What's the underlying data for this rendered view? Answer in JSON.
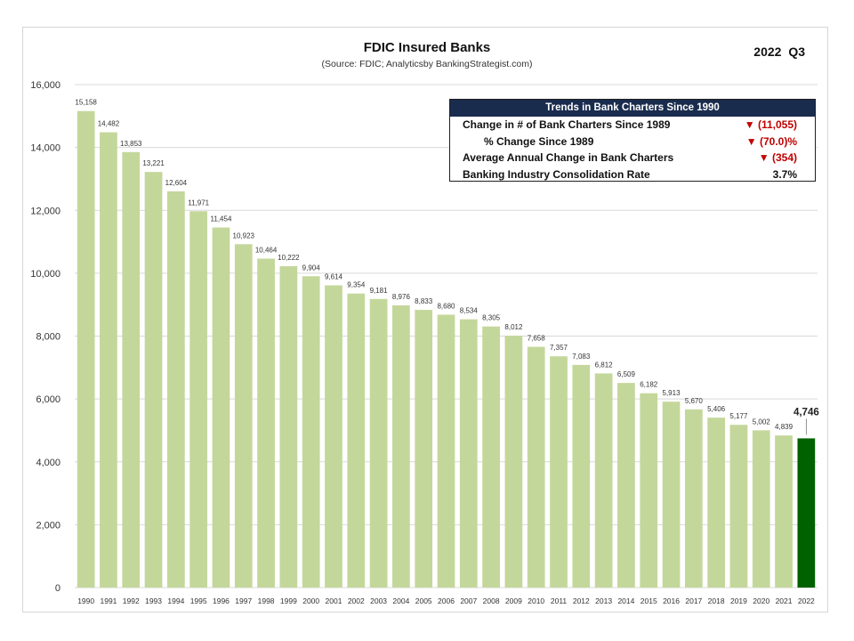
{
  "header": {
    "title": "FDIC Insured Banks",
    "subtitle": "(Source: FDIC; Analyticsby BankingStrategist.com)",
    "period": "2022  Q3"
  },
  "info_box": {
    "title": "Trends in Bank Charters Since 1990",
    "rows": [
      {
        "label": "Change in # of Bank Charters Since 1989",
        "value": "▼  (11,055)"
      },
      {
        "label": "% Change Since 1989",
        "value": "▼  (70.0)%"
      },
      {
        "label": "Average Annual Change in Bank Charters",
        "value": "▼  (354)"
      },
      {
        "label": "Banking Industry Consolidation Rate",
        "value": "3.7%"
      }
    ]
  },
  "colors": {
    "bar": "#c4d79b",
    "highlight_bar": "#006100",
    "grid": "#d9d9d9",
    "negative": "#c00000",
    "header_bg": "#1a2c4e"
  },
  "chart_data": {
    "type": "bar",
    "title": "FDIC Insured Banks",
    "subtitle": "(Source: FDIC; Analyticsby BankingStrategist.com)",
    "xlabel": "",
    "ylabel": "",
    "ylim": [
      0,
      16000
    ],
    "yticks": [
      0,
      2000,
      4000,
      6000,
      8000,
      10000,
      12000,
      14000,
      16000
    ],
    "ytick_labels": [
      "0",
      "2,000",
      "4,000",
      "6,000",
      "8,000",
      "10,000",
      "12,000",
      "14,000",
      "16,000"
    ],
    "grid": true,
    "categories": [
      "1990",
      "1991",
      "1992",
      "1993",
      "1994",
      "1995",
      "1996",
      "1997",
      "1998",
      "1999",
      "2000",
      "2001",
      "2002",
      "2003",
      "2004",
      "2005",
      "2006",
      "2007",
      "2008",
      "2009",
      "2010",
      "2011",
      "2012",
      "2013",
      "2014",
      "2015",
      "2016",
      "2017",
      "2018",
      "2019",
      "2020",
      "2021",
      "2022"
    ],
    "values": [
      15158,
      14482,
      13853,
      13221,
      12604,
      11971,
      11454,
      10923,
      10464,
      10222,
      9904,
      9614,
      9354,
      9181,
      8976,
      8833,
      8680,
      8534,
      8305,
      8012,
      7658,
      7357,
      7083,
      6812,
      6509,
      6182,
      5913,
      5670,
      5406,
      5177,
      5002,
      4839,
      4746
    ],
    "value_labels": [
      "15,158",
      "14,482",
      "13,853",
      "13,221",
      "12,604",
      "11,971",
      "11,454",
      "10,923",
      "10,464",
      "10,222",
      "9,904",
      "9,614",
      "9,354",
      "9,181",
      "8,976",
      "8,833",
      "8,680",
      "8,534",
      "8,305",
      "8,012",
      "7,658",
      "7,357",
      "7,083",
      "6,812",
      "6,509",
      "6,182",
      "5,913",
      "5,670",
      "5,406",
      "5,177",
      "5,002",
      "4,839",
      "4,746"
    ],
    "highlight_category": "2022"
  }
}
